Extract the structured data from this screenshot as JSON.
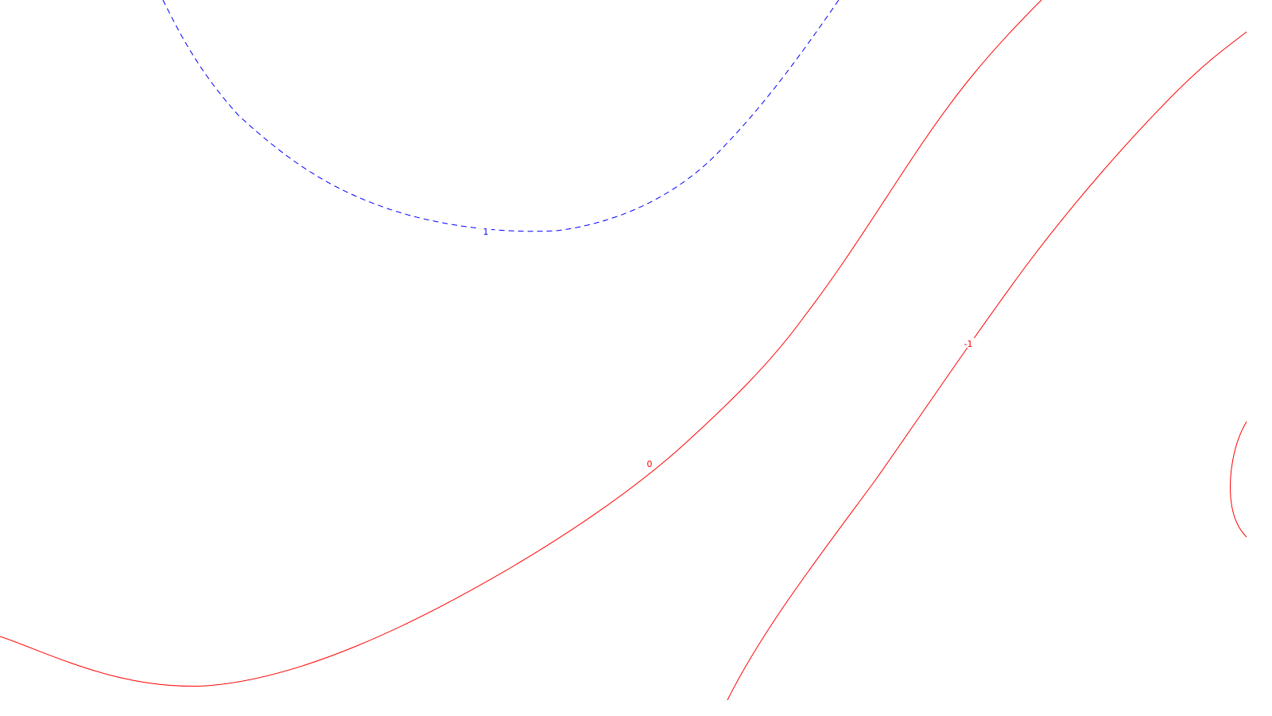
{
  "chart_data": {
    "type": "contour",
    "title": "",
    "xlabel": "",
    "ylabel": "",
    "grid": false,
    "legend": "none",
    "contours": [
      {
        "level": 1,
        "label": "1",
        "color": "#0000ff",
        "dashed": true
      },
      {
        "level": 0,
        "label": "0",
        "color": "#ff0000",
        "dashed": false
      },
      {
        "level": -1,
        "label": "-1",
        "color": "#ff0000",
        "dashed": false
      },
      {
        "level": -1,
        "label": "",
        "color": "#ff0000",
        "dashed": false
      }
    ]
  }
}
